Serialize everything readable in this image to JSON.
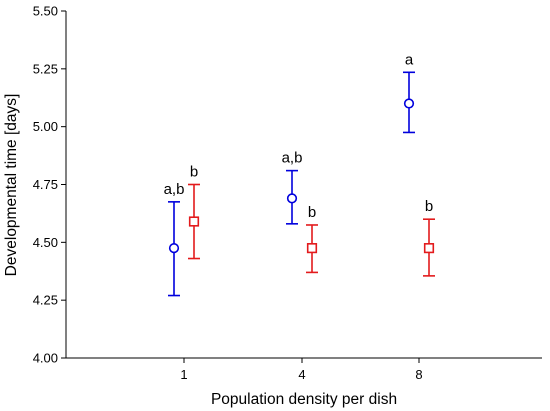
{
  "chart_data": {
    "type": "scatter",
    "xlabel": "Population density per dish",
    "ylabel": "Developmental time [days]",
    "ylim": [
      4.0,
      5.5
    ],
    "y_ticks": [
      "4.00",
      "4.25",
      "4.50",
      "4.75",
      "5.00",
      "5.25",
      "5.50"
    ],
    "categories": [
      "1",
      "4",
      "8"
    ],
    "grid": false,
    "series": [
      {
        "marker": "circle",
        "color": "#0000dd",
        "values": [
          4.475,
          4.69,
          5.1
        ],
        "err_low": [
          4.27,
          4.58,
          4.975
        ],
        "err_high": [
          4.675,
          4.81,
          5.235
        ],
        "labels": [
          "a,b",
          "a,b",
          "a"
        ]
      },
      {
        "marker": "square",
        "color": "#e31a1c",
        "values": [
          4.59,
          4.475,
          4.475
        ],
        "err_low": [
          4.43,
          4.37,
          4.355
        ],
        "err_high": [
          4.75,
          4.575,
          4.6
        ],
        "labels": [
          "b",
          "b",
          "b"
        ]
      }
    ]
  }
}
